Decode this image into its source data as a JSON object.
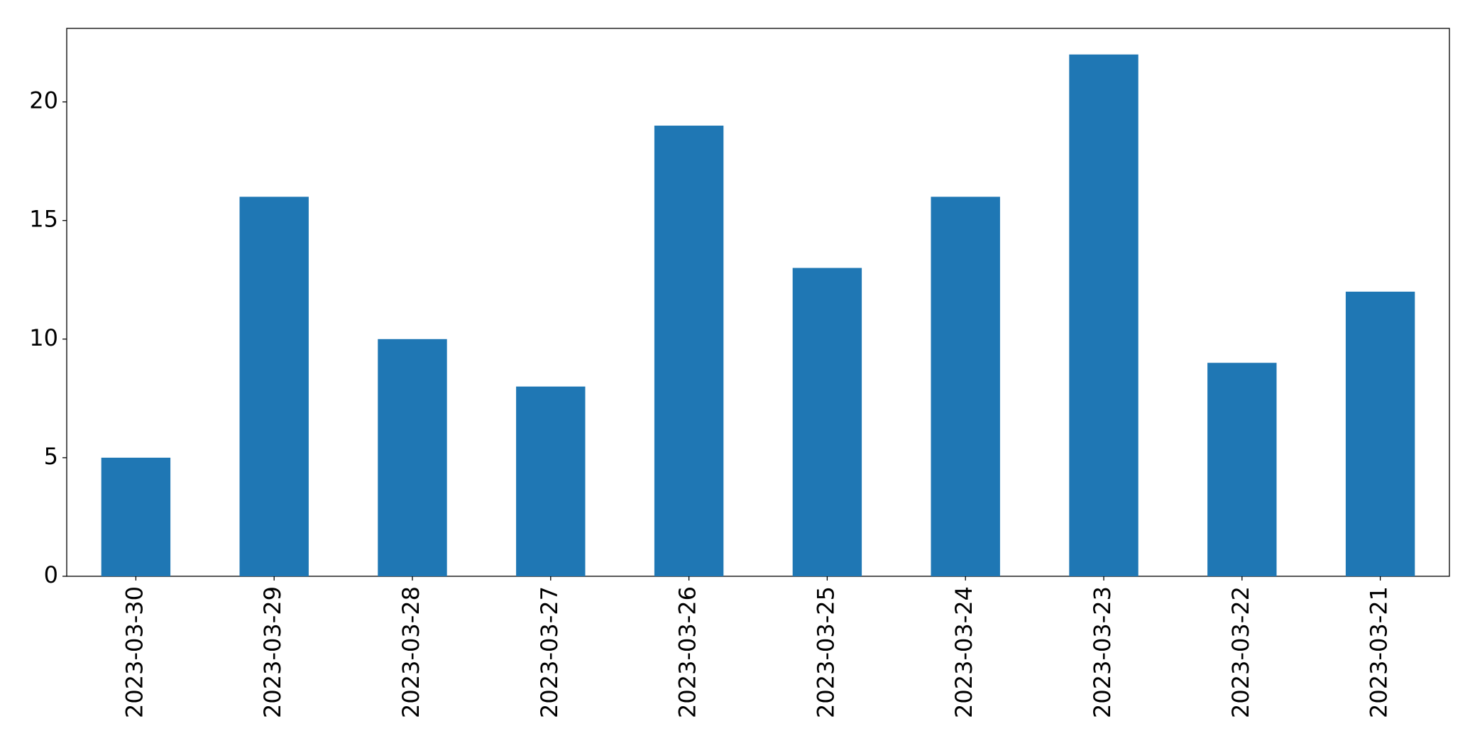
{
  "chart_data": {
    "type": "bar",
    "categories": [
      "2023-03-30",
      "2023-03-29",
      "2023-03-28",
      "2023-03-27",
      "2023-03-26",
      "2023-03-25",
      "2023-03-24",
      "2023-03-23",
      "2023-03-22",
      "2023-03-21"
    ],
    "values": [
      5,
      16,
      10,
      8,
      19,
      13,
      16,
      22,
      9,
      12
    ],
    "color": "#1f77b4",
    "ylim": [
      0,
      23.1
    ],
    "yticks": [
      0,
      5,
      10,
      15,
      20
    ]
  }
}
